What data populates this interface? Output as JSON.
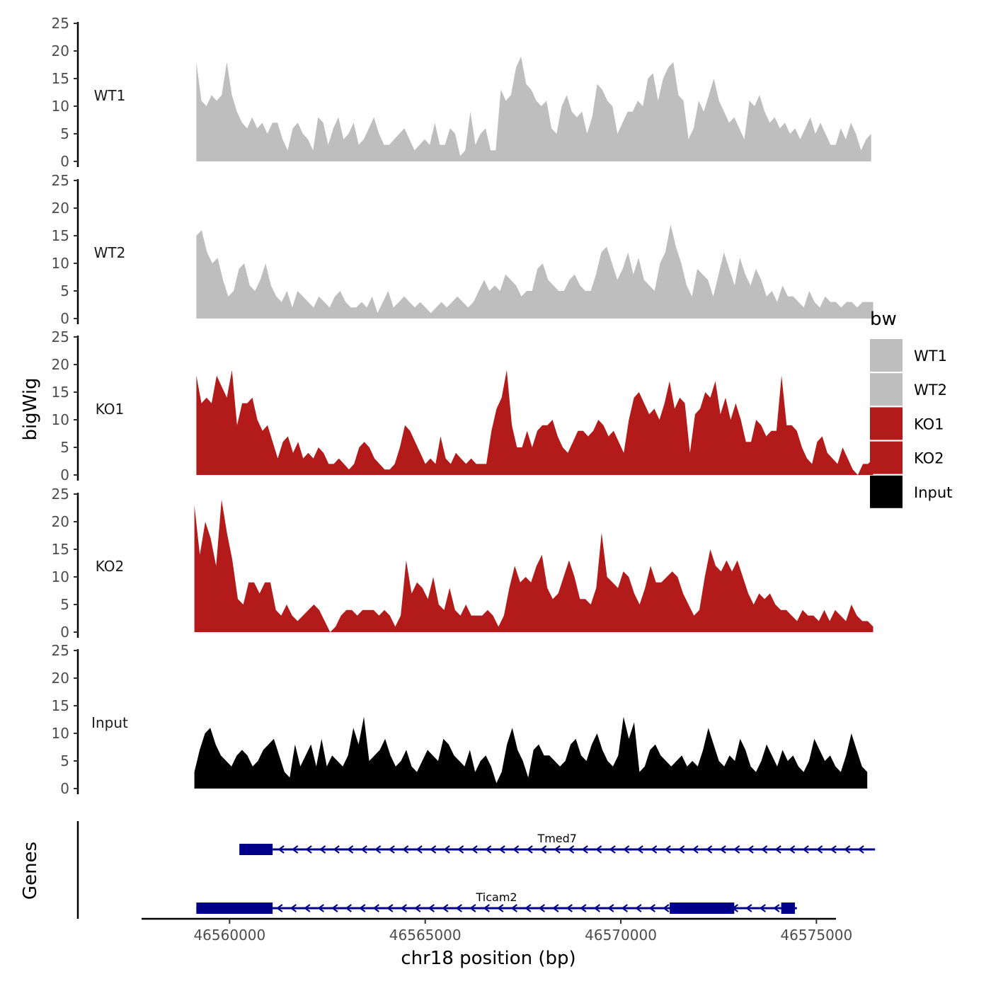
{
  "chart_data": {
    "type": "area",
    "xlabel": "chr18 position (bp)",
    "ylabel_tracks": "bigWig",
    "ylabel_genes": "Genes",
    "xlim": [
      46557750,
      46575500
    ],
    "ylim": [
      0,
      25
    ],
    "y_ticks": [
      "0",
      "5",
      "10",
      "15",
      "20",
      "25"
    ],
    "x_ticks": [
      {
        "value": 46560000,
        "label": "46560000"
      },
      {
        "value": 46565000,
        "label": "46565000"
      },
      {
        "value": 46570000,
        "label": "46570000"
      },
      {
        "value": 46575000,
        "label": "46575000"
      }
    ],
    "legend": {
      "title": "bw",
      "entries": [
        {
          "label": "WT1",
          "color": "#bebebe"
        },
        {
          "label": "WT2",
          "color": "#bebebe"
        },
        {
          "label": "KO1",
          "color": "#b31b1b"
        },
        {
          "label": "KO2",
          "color": "#b31b1b"
        },
        {
          "label": "Input",
          "color": "#000000"
        }
      ]
    },
    "series": [
      {
        "name": "WT1",
        "color": "#bebebe",
        "x_start": 46559150,
        "x_end": 46576400,
        "values": [
          18,
          11,
          10,
          12,
          11,
          12,
          18,
          12,
          9,
          7,
          6,
          8,
          6,
          7,
          5,
          7,
          7,
          4,
          2,
          6,
          7,
          5,
          4,
          2,
          8,
          7,
          3,
          6,
          8,
          4,
          5,
          7,
          3,
          4,
          6,
          8,
          5,
          3,
          3,
          4,
          5,
          6,
          4,
          2,
          3,
          4,
          3,
          7,
          3,
          3,
          6,
          5,
          1,
          2,
          9,
          3,
          5,
          6,
          2,
          2,
          13,
          11,
          12,
          17,
          19,
          14,
          13,
          11,
          10,
          11,
          6,
          5,
          10,
          12,
          9,
          8,
          9,
          5,
          8,
          14,
          13,
          11,
          10,
          5,
          7,
          9,
          9,
          11,
          10,
          15,
          16,
          11,
          15,
          17,
          18,
          12,
          11,
          4,
          6,
          11,
          9,
          12,
          15,
          11,
          9,
          7,
          8,
          6,
          4,
          11,
          10,
          12,
          9,
          7,
          8,
          6,
          7,
          5,
          6,
          4,
          6,
          8,
          5,
          7,
          5,
          3,
          3,
          6,
          4,
          7,
          5,
          2,
          4,
          5
        ]
      },
      {
        "name": "WT2",
        "color": "#bebebe",
        "x_start": 46559150,
        "x_end": 46576450,
        "values": [
          15,
          16,
          12,
          10,
          11,
          7,
          4,
          5,
          9,
          10,
          6,
          5,
          7,
          10,
          6,
          4,
          3,
          5,
          2,
          5,
          4,
          3,
          2,
          4,
          3,
          2,
          4,
          5,
          3,
          2,
          2,
          3,
          2,
          4,
          1,
          3,
          5,
          2,
          3,
          4,
          3,
          2,
          3,
          2,
          1,
          2,
          3,
          2,
          3,
          4,
          3,
          2,
          3,
          5,
          7,
          5,
          6,
          5,
          8,
          7,
          6,
          4,
          5,
          5,
          9,
          10,
          7,
          6,
          5,
          5,
          7,
          8,
          6,
          5,
          5,
          8,
          12,
          13,
          10,
          7,
          9,
          12,
          8,
          11,
          7,
          6,
          5,
          10,
          12,
          17,
          13,
          10,
          6,
          4,
          9,
          8,
          7,
          4,
          8,
          12,
          9,
          6,
          11,
          8,
          6,
          9,
          7,
          4,
          5,
          3,
          6,
          4,
          4,
          3,
          2,
          5,
          3,
          2,
          4,
          3,
          3,
          2,
          3,
          3,
          2,
          3,
          3,
          3
        ]
      },
      {
        "name": "KO1",
        "color": "#b31b1b",
        "x_start": 46559150,
        "x_end": 46576450,
        "values": [
          18,
          13,
          14,
          13,
          18,
          16,
          14,
          19,
          9,
          13,
          13,
          14,
          10,
          8,
          9,
          6,
          3,
          6,
          7,
          4,
          6,
          3,
          4,
          3,
          5,
          4,
          2,
          2,
          3,
          2,
          1,
          2,
          5,
          6,
          5,
          3,
          2,
          1,
          1,
          2,
          5,
          9,
          8,
          6,
          4,
          2,
          3,
          2,
          7,
          3,
          2,
          4,
          3,
          2,
          3,
          2,
          2,
          2,
          8,
          12,
          14,
          19,
          9,
          5,
          5,
          8,
          5,
          8,
          9,
          9,
          10,
          7,
          5,
          4,
          6,
          8,
          8,
          7,
          8,
          10,
          9,
          7,
          8,
          6,
          4,
          10,
          14,
          15,
          13,
          11,
          12,
          10,
          13,
          17,
          12,
          14,
          13,
          4,
          11,
          12,
          15,
          14,
          17,
          11,
          14,
          10,
          13,
          10,
          6,
          6,
          10,
          9,
          7,
          8,
          8,
          18,
          9,
          9,
          8,
          5,
          3,
          2,
          6,
          7,
          4,
          3,
          2,
          5,
          3,
          1,
          0,
          2,
          2,
          3
        ]
      },
      {
        "name": "KO2",
        "color": "#b31b1b",
        "x_start": 46559100,
        "x_end": 46576450,
        "values": [
          23,
          14,
          20,
          17,
          12,
          24,
          18,
          13,
          6,
          5,
          9,
          9,
          7,
          9,
          9,
          4,
          3,
          5,
          3,
          2,
          3,
          4,
          5,
          4,
          2,
          0,
          1,
          3,
          4,
          4,
          3,
          4,
          4,
          4,
          3,
          4,
          3,
          1,
          3,
          13,
          7,
          9,
          8,
          6,
          10,
          5,
          4,
          8,
          4,
          3,
          5,
          3,
          3,
          3,
          4,
          3,
          1,
          3,
          8,
          12,
          9,
          10,
          9,
          12,
          14,
          8,
          6,
          7,
          10,
          13,
          10,
          6,
          6,
          5,
          8,
          18,
          10,
          9,
          8,
          11,
          10,
          7,
          5,
          8,
          12,
          9,
          9,
          10,
          11,
          10,
          7,
          5,
          3,
          4,
          10,
          15,
          12,
          11,
          13,
          11,
          13,
          10,
          7,
          5,
          7,
          6,
          7,
          5,
          4,
          4,
          3,
          2,
          4,
          3,
          3,
          2,
          4,
          2,
          4,
          3,
          2,
          5,
          3,
          2,
          2,
          1
        ]
      },
      {
        "name": "Input",
        "color": "#000000",
        "x_start": 46559100,
        "x_end": 46576300,
        "values": [
          3,
          7,
          10,
          11,
          8,
          6,
          5,
          4,
          6,
          7,
          6,
          4,
          5,
          7,
          8,
          9,
          6,
          3,
          2,
          8,
          4,
          6,
          8,
          4,
          9,
          4,
          6,
          5,
          4,
          6,
          11,
          8,
          13,
          5,
          6,
          7,
          9,
          6,
          4,
          5,
          7,
          4,
          3,
          5,
          7,
          6,
          5,
          9,
          8,
          6,
          5,
          4,
          7,
          3,
          5,
          6,
          4,
          1,
          3,
          8,
          11,
          7,
          5,
          2,
          7,
          8,
          6,
          6,
          5,
          4,
          5,
          8,
          9,
          6,
          5,
          8,
          10,
          7,
          5,
          4,
          6,
          13,
          9,
          12,
          3,
          4,
          7,
          8,
          6,
          5,
          4,
          5,
          6,
          4,
          5,
          4,
          7,
          11,
          8,
          5,
          4,
          6,
          5,
          9,
          7,
          4,
          3,
          5,
          8,
          6,
          4,
          7,
          5,
          6,
          4,
          3,
          5,
          9,
          7,
          5,
          6,
          4,
          3,
          6,
          10,
          7,
          4,
          3
        ]
      }
    ],
    "genes": [
      {
        "name": "Tmed7",
        "strand": "-",
        "start": 46560250,
        "end": 46576500,
        "exons": [
          [
            46560250,
            46561100
          ]
        ],
        "color": "#00008b"
      },
      {
        "name": "Ticam2",
        "strand": "-",
        "start": 46559150,
        "end": 46574500,
        "exons": [
          [
            46559150,
            46561100
          ],
          [
            46571250,
            46572900
          ],
          [
            46574100,
            46574450
          ]
        ],
        "color": "#00008b"
      }
    ]
  }
}
